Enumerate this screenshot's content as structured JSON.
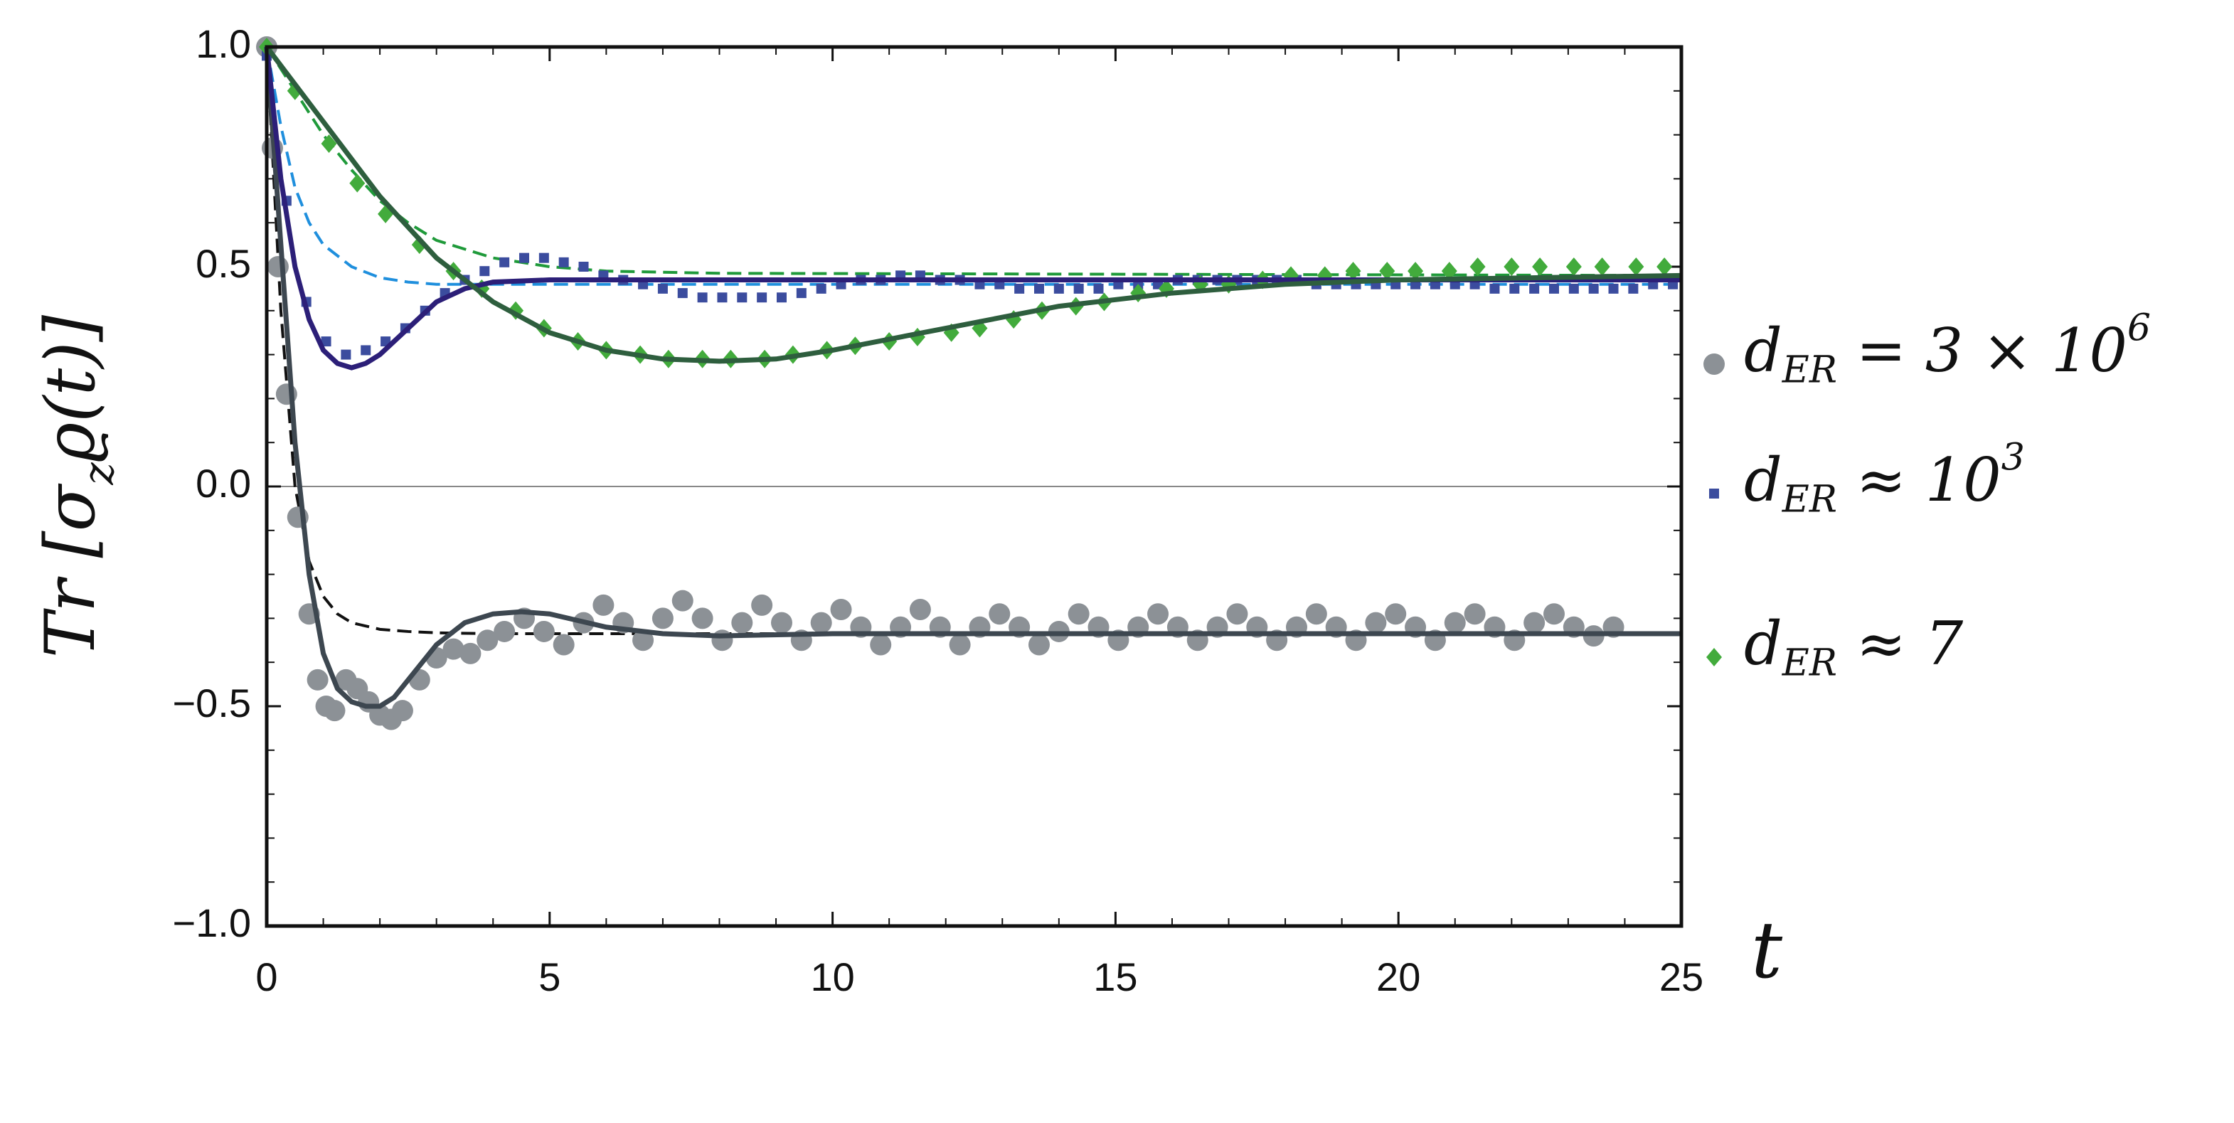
{
  "chart_data": {
    "type": "scatter",
    "xlabel": [
      {
        "text": "t"
      }
    ],
    "ylabel": [
      {
        "text": "Tr "
      },
      {
        "text": "[σ"
      },
      {
        "text": "z",
        "sub": true
      },
      {
        "text": "ϱ(t)]"
      }
    ],
    "xlim": [
      0,
      25
    ],
    "ylim": [
      -1,
      1
    ],
    "xticks": [
      0,
      5,
      10,
      15,
      20,
      25
    ],
    "yticks": [
      {
        "value": -1,
        "label": "−1.0"
      },
      {
        "value": -0.5,
        "label": "−0.5"
      },
      {
        "value": 0,
        "label": "0.0"
      },
      0.5,
      {
        "value": 1,
        "label": "1.0"
      }
    ],
    "zero_line": true,
    "legend": "right",
    "series": [
      {
        "name": [
          {
            "text": "d"
          },
          {
            "text": "ER",
            "sub": true
          },
          {
            "text": " = 3 × 10"
          },
          {
            "text": "6",
            "sup": true
          }
        ],
        "color": "#8c9196",
        "marker": "circle",
        "x": [
          0,
          0.1,
          0.2,
          0.35,
          0.55,
          0.75,
          0.9,
          1.05,
          1.2,
          1.4,
          1.6,
          1.8,
          2.0,
          2.2,
          2.4,
          2.7,
          3.0,
          3.3,
          3.6,
          3.9,
          4.2,
          4.55,
          4.9,
          5.25,
          5.6,
          5.95,
          6.3,
          6.65,
          7.0,
          7.35,
          7.7,
          8.05,
          8.4,
          8.75,
          9.1,
          9.45,
          9.8,
          10.15,
          10.5,
          10.85,
          11.2,
          11.55,
          11.9,
          12.25,
          12.6,
          12.95,
          13.3,
          13.65,
          14.0,
          14.35,
          14.7,
          15.05,
          15.4,
          15.75,
          16.1,
          16.45,
          16.8,
          17.15,
          17.5,
          17.85,
          18.2,
          18.55,
          18.9,
          19.25,
          19.6,
          19.95,
          20.3,
          20.65,
          21.0,
          21.35,
          21.7,
          22.05,
          22.4,
          22.75,
          23.1,
          23.45,
          23.8
        ],
        "values": [
          1.0,
          0.77,
          0.5,
          0.21,
          -0.07,
          -0.29,
          -0.44,
          -0.5,
          -0.51,
          -0.44,
          -0.46,
          -0.49,
          -0.52,
          -0.53,
          -0.51,
          -0.44,
          -0.39,
          -0.37,
          -0.38,
          -0.35,
          -0.33,
          -0.3,
          -0.33,
          -0.36,
          -0.31,
          -0.27,
          -0.31,
          -0.35,
          -0.3,
          -0.26,
          -0.3,
          -0.35,
          -0.31,
          -0.27,
          -0.31,
          -0.35,
          -0.31,
          -0.28,
          -0.32,
          -0.36,
          -0.32,
          -0.28,
          -0.32,
          -0.36,
          -0.32,
          -0.29,
          -0.32,
          -0.36,
          -0.33,
          -0.29,
          -0.32,
          -0.35,
          -0.32,
          -0.29,
          -0.32,
          -0.35,
          -0.32,
          -0.29,
          -0.32,
          -0.35,
          -0.32,
          -0.29,
          -0.32,
          -0.35,
          -0.31,
          -0.29,
          -0.32,
          -0.35,
          -0.31,
          -0.29,
          -0.32,
          -0.35,
          -0.31,
          -0.29,
          -0.32,
          -0.34,
          -0.32
        ]
      },
      {
        "name": [
          {
            "text": "d"
          },
          {
            "text": "ER",
            "sub": true
          },
          {
            "text": " ≈ 10"
          },
          {
            "text": "3",
            "sup": true
          }
        ],
        "color": "#3b4c9e",
        "marker": "square",
        "x": [
          0,
          0.35,
          0.7,
          1.05,
          1.4,
          1.75,
          2.1,
          2.45,
          2.8,
          3.15,
          3.5,
          3.85,
          4.2,
          4.55,
          4.9,
          5.25,
          5.6,
          5.95,
          6.3,
          6.65,
          7.0,
          7.35,
          7.7,
          8.05,
          8.4,
          8.75,
          9.1,
          9.45,
          9.8,
          10.15,
          10.5,
          10.85,
          11.2,
          11.55,
          11.9,
          12.25,
          12.6,
          12.95,
          13.3,
          13.65,
          14.0,
          14.35,
          14.7,
          15.05,
          15.4,
          15.75,
          16.1,
          16.45,
          16.8,
          17.15,
          17.5,
          17.85,
          18.2,
          18.55,
          18.9,
          19.25,
          19.6,
          19.95,
          20.3,
          20.65,
          21.0,
          21.35,
          21.7,
          22.05,
          22.4,
          22.75,
          23.1,
          23.45,
          23.8,
          24.15,
          24.5,
          24.85
        ],
        "values": [
          0.98,
          0.65,
          0.42,
          0.33,
          0.3,
          0.31,
          0.33,
          0.36,
          0.4,
          0.44,
          0.47,
          0.49,
          0.51,
          0.52,
          0.52,
          0.51,
          0.5,
          0.48,
          0.47,
          0.46,
          0.45,
          0.44,
          0.43,
          0.43,
          0.43,
          0.43,
          0.43,
          0.44,
          0.45,
          0.46,
          0.47,
          0.47,
          0.48,
          0.48,
          0.47,
          0.47,
          0.46,
          0.46,
          0.45,
          0.45,
          0.45,
          0.45,
          0.45,
          0.46,
          0.46,
          0.46,
          0.47,
          0.47,
          0.47,
          0.47,
          0.47,
          0.47,
          0.47,
          0.46,
          0.46,
          0.46,
          0.46,
          0.46,
          0.46,
          0.46,
          0.46,
          0.46,
          0.45,
          0.45,
          0.45,
          0.45,
          0.45,
          0.45,
          0.45,
          0.45,
          0.46,
          0.46
        ]
      },
      {
        "name": [
          {
            "text": "d"
          },
          {
            "text": "ER",
            "sub": true
          },
          {
            "text": " ≈ 7"
          }
        ],
        "color": "#42ab3c",
        "marker": "diamond",
        "x": [
          0,
          0.5,
          1.1,
          1.6,
          2.1,
          2.7,
          3.3,
          3.8,
          4.4,
          4.9,
          5.5,
          6.0,
          6.6,
          7.1,
          7.7,
          8.2,
          8.8,
          9.3,
          9.9,
          10.4,
          11.0,
          11.5,
          12.1,
          12.6,
          13.2,
          13.7,
          14.3,
          14.8,
          15.4,
          15.9,
          16.5,
          17.0,
          17.6,
          18.1,
          18.7,
          19.2,
          19.8,
          20.3,
          20.9,
          21.4,
          22.0,
          22.5,
          23.1,
          23.6,
          24.2,
          24.7
        ],
        "values": [
          1.0,
          0.9,
          0.78,
          0.69,
          0.62,
          0.55,
          0.49,
          0.45,
          0.4,
          0.36,
          0.33,
          0.31,
          0.3,
          0.29,
          0.29,
          0.29,
          0.29,
          0.3,
          0.31,
          0.32,
          0.33,
          0.34,
          0.35,
          0.36,
          0.38,
          0.4,
          0.41,
          0.42,
          0.44,
          0.45,
          0.46,
          0.46,
          0.47,
          0.48,
          0.48,
          0.49,
          0.49,
          0.49,
          0.49,
          0.5,
          0.5,
          0.5,
          0.5,
          0.5,
          0.5,
          0.5
        ]
      }
    ],
    "lines": [
      {
        "color": "#111111",
        "dashed": true,
        "x": [
          0,
          0.25,
          0.5,
          0.75,
          1,
          1.25,
          1.5,
          2,
          2.5,
          3,
          4,
          25
        ],
        "values": [
          1,
          0.4,
          0.0,
          -0.17,
          -0.25,
          -0.29,
          -0.31,
          -0.325,
          -0.33,
          -0.333,
          -0.335,
          -0.335
        ]
      },
      {
        "color": "#1f8fdd",
        "dashed": true,
        "x": [
          0,
          0.25,
          0.5,
          0.75,
          1,
          1.5,
          2,
          2.5,
          3,
          4,
          25
        ],
        "values": [
          1,
          0.82,
          0.68,
          0.6,
          0.55,
          0.5,
          0.475,
          0.465,
          0.46,
          0.46,
          0.46
        ]
      },
      {
        "color": "#1f9a3a",
        "dashed": true,
        "x": [
          0,
          0.5,
          1,
          1.5,
          2,
          2.5,
          3,
          4,
          5,
          6,
          8,
          25
        ],
        "values": [
          1,
          0.9,
          0.8,
          0.72,
          0.65,
          0.6,
          0.56,
          0.52,
          0.5,
          0.49,
          0.485,
          0.48
        ]
      },
      {
        "color": "#3d4750",
        "dashed": false,
        "x": [
          0,
          0.25,
          0.5,
          0.75,
          1.0,
          1.25,
          1.5,
          1.75,
          2.0,
          2.25,
          2.5,
          3,
          3.5,
          4,
          4.5,
          5,
          5.5,
          6,
          7,
          8,
          10,
          15,
          20,
          25
        ],
        "values": [
          1.0,
          0.55,
          0.1,
          -0.2,
          -0.38,
          -0.46,
          -0.49,
          -0.5,
          -0.5,
          -0.48,
          -0.44,
          -0.36,
          -0.31,
          -0.29,
          -0.285,
          -0.29,
          -0.305,
          -0.32,
          -0.335,
          -0.34,
          -0.335,
          -0.335,
          -0.335,
          -0.335
        ]
      },
      {
        "color": "#2c1f78",
        "dashed": false,
        "x": [
          0,
          0.25,
          0.5,
          0.75,
          1,
          1.25,
          1.5,
          1.75,
          2,
          2.5,
          3,
          3.5,
          4,
          5,
          6,
          8,
          25
        ],
        "values": [
          1,
          0.7,
          0.5,
          0.38,
          0.31,
          0.28,
          0.27,
          0.28,
          0.3,
          0.36,
          0.42,
          0.45,
          0.465,
          0.47,
          0.47,
          0.47,
          0.47
        ]
      },
      {
        "color": "#2e5e3e",
        "dashed": false,
        "x": [
          0,
          1,
          2,
          3,
          4,
          5,
          6,
          7,
          8,
          9,
          10,
          12,
          14,
          16,
          18,
          20,
          25
        ],
        "values": [
          1,
          0.83,
          0.66,
          0.52,
          0.42,
          0.35,
          0.31,
          0.29,
          0.285,
          0.29,
          0.31,
          0.36,
          0.41,
          0.44,
          0.46,
          0.47,
          0.48
        ]
      }
    ]
  }
}
